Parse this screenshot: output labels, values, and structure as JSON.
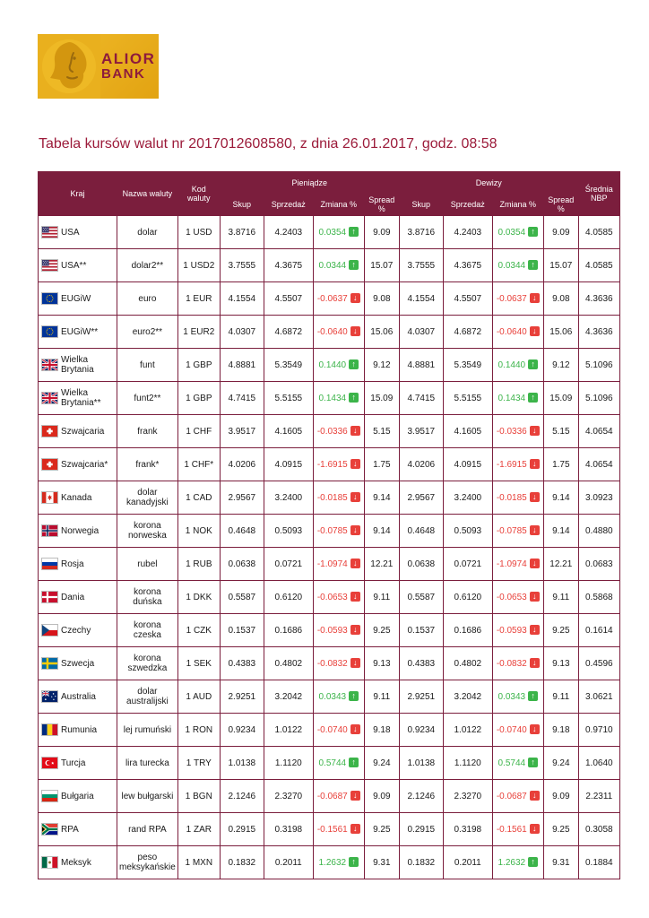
{
  "logo": {
    "brand_line1": "ALIOR",
    "brand_line2": "BANK"
  },
  "title": "Tabela kursów walut nr 2017012608580, z dnia 26.01.2017, godz. 08:58",
  "colors": {
    "maroon": "#7b1e3d",
    "title_red": "#9c1b3a",
    "green": "#3cb44a",
    "red": "#e8403a",
    "gold": "#e9b01e"
  },
  "table": {
    "headers": {
      "kraj": "Kraj",
      "nazwa": "Nazwa waluty",
      "kod": "Kod waluty",
      "pieniadze": "Pieniądze",
      "dewizy": "Dewizy",
      "srednia": "Średnia NBP"
    },
    "subheaders": [
      "Skup",
      "Sprzedaż",
      "Zmiana %",
      "Spread %",
      "Skup",
      "Sprzedaż",
      "Zmiana %",
      "Spread %"
    ],
    "rows": [
      {
        "flag": "us",
        "country": "USA",
        "currency": "dolar",
        "code": "1 USD",
        "pieniadze": {
          "skup": "3.8716",
          "sprzedaz": "4.2403",
          "zmiana": "0.0354",
          "dir": "up",
          "spread": "9.09"
        },
        "dewizy": {
          "skup": "3.8716",
          "sprzedaz": "4.2403",
          "zmiana": "0.0354",
          "dir": "up",
          "spread": "9.09"
        },
        "nbp": "4.0585"
      },
      {
        "flag": "us",
        "country": "USA**",
        "currency": "dolar2**",
        "code": "1 USD2",
        "pieniadze": {
          "skup": "3.7555",
          "sprzedaz": "4.3675",
          "zmiana": "0.0344",
          "dir": "up",
          "spread": "15.07"
        },
        "dewizy": {
          "skup": "3.7555",
          "sprzedaz": "4.3675",
          "zmiana": "0.0344",
          "dir": "up",
          "spread": "15.07"
        },
        "nbp": "4.0585"
      },
      {
        "flag": "eu",
        "country": "EUGiW",
        "currency": "euro",
        "code": "1 EUR",
        "pieniadze": {
          "skup": "4.1554",
          "sprzedaz": "4.5507",
          "zmiana": "-0.0637",
          "dir": "down",
          "spread": "9.08"
        },
        "dewizy": {
          "skup": "4.1554",
          "sprzedaz": "4.5507",
          "zmiana": "-0.0637",
          "dir": "down",
          "spread": "9.08"
        },
        "nbp": "4.3636"
      },
      {
        "flag": "eu",
        "country": "EUGiW**",
        "currency": "euro2**",
        "code": "1 EUR2",
        "pieniadze": {
          "skup": "4.0307",
          "sprzedaz": "4.6872",
          "zmiana": "-0.0640",
          "dir": "down",
          "spread": "15.06"
        },
        "dewizy": {
          "skup": "4.0307",
          "sprzedaz": "4.6872",
          "zmiana": "-0.0640",
          "dir": "down",
          "spread": "15.06"
        },
        "nbp": "4.3636"
      },
      {
        "flag": "gb",
        "country": "Wielka Brytania",
        "currency": "funt",
        "code": "1 GBP",
        "pieniadze": {
          "skup": "4.8881",
          "sprzedaz": "5.3549",
          "zmiana": "0.1440",
          "dir": "up",
          "spread": "9.12"
        },
        "dewizy": {
          "skup": "4.8881",
          "sprzedaz": "5.3549",
          "zmiana": "0.1440",
          "dir": "up",
          "spread": "9.12"
        },
        "nbp": "5.1096"
      },
      {
        "flag": "gb",
        "country": "Wielka Brytania**",
        "currency": "funt2**",
        "code": "1 GBP",
        "pieniadze": {
          "skup": "4.7415",
          "sprzedaz": "5.5155",
          "zmiana": "0.1434",
          "dir": "up",
          "spread": "15.09"
        },
        "dewizy": {
          "skup": "4.7415",
          "sprzedaz": "5.5155",
          "zmiana": "0.1434",
          "dir": "up",
          "spread": "15.09"
        },
        "nbp": "5.1096"
      },
      {
        "flag": "ch",
        "country": "Szwajcaria",
        "currency": "frank",
        "code": "1 CHF",
        "pieniadze": {
          "skup": "3.9517",
          "sprzedaz": "4.1605",
          "zmiana": "-0.0336",
          "dir": "down",
          "spread": "5.15"
        },
        "dewizy": {
          "skup": "3.9517",
          "sprzedaz": "4.1605",
          "zmiana": "-0.0336",
          "dir": "down",
          "spread": "5.15"
        },
        "nbp": "4.0654"
      },
      {
        "flag": "ch",
        "country": "Szwajcaria*",
        "currency": "frank*",
        "code": "1 CHF*",
        "pieniadze": {
          "skup": "4.0206",
          "sprzedaz": "4.0915",
          "zmiana": "-1.6915",
          "dir": "down",
          "spread": "1.75"
        },
        "dewizy": {
          "skup": "4.0206",
          "sprzedaz": "4.0915",
          "zmiana": "-1.6915",
          "dir": "down",
          "spread": "1.75"
        },
        "nbp": "4.0654"
      },
      {
        "flag": "ca",
        "country": "Kanada",
        "currency": "dolar kanadyjski",
        "code": "1 CAD",
        "pieniadze": {
          "skup": "2.9567",
          "sprzedaz": "3.2400",
          "zmiana": "-0.0185",
          "dir": "down",
          "spread": "9.14"
        },
        "dewizy": {
          "skup": "2.9567",
          "sprzedaz": "3.2400",
          "zmiana": "-0.0185",
          "dir": "down",
          "spread": "9.14"
        },
        "nbp": "3.0923"
      },
      {
        "flag": "no",
        "country": "Norwegia",
        "currency": "korona norweska",
        "code": "1 NOK",
        "pieniadze": {
          "skup": "0.4648",
          "sprzedaz": "0.5093",
          "zmiana": "-0.0785",
          "dir": "down",
          "spread": "9.14"
        },
        "dewizy": {
          "skup": "0.4648",
          "sprzedaz": "0.5093",
          "zmiana": "-0.0785",
          "dir": "down",
          "spread": "9.14"
        },
        "nbp": "0.4880"
      },
      {
        "flag": "ru",
        "country": "Rosja",
        "currency": "rubel",
        "code": "1 RUB",
        "pieniadze": {
          "skup": "0.0638",
          "sprzedaz": "0.0721",
          "zmiana": "-1.0974",
          "dir": "down",
          "spread": "12.21"
        },
        "dewizy": {
          "skup": "0.0638",
          "sprzedaz": "0.0721",
          "zmiana": "-1.0974",
          "dir": "down",
          "spread": "12.21"
        },
        "nbp": "0.0683"
      },
      {
        "flag": "dk",
        "country": "Dania",
        "currency": "korona duńska",
        "code": "1 DKK",
        "pieniadze": {
          "skup": "0.5587",
          "sprzedaz": "0.6120",
          "zmiana": "-0.0653",
          "dir": "down",
          "spread": "9.11"
        },
        "dewizy": {
          "skup": "0.5587",
          "sprzedaz": "0.6120",
          "zmiana": "-0.0653",
          "dir": "down",
          "spread": "9.11"
        },
        "nbp": "0.5868"
      },
      {
        "flag": "cz",
        "country": "Czechy",
        "currency": "korona czeska",
        "code": "1 CZK",
        "pieniadze": {
          "skup": "0.1537",
          "sprzedaz": "0.1686",
          "zmiana": "-0.0593",
          "dir": "down",
          "spread": "9.25"
        },
        "dewizy": {
          "skup": "0.1537",
          "sprzedaz": "0.1686",
          "zmiana": "-0.0593",
          "dir": "down",
          "spread": "9.25"
        },
        "nbp": "0.1614"
      },
      {
        "flag": "se",
        "country": "Szwecja",
        "currency": "korona szwedzka",
        "code": "1 SEK",
        "pieniadze": {
          "skup": "0.4383",
          "sprzedaz": "0.4802",
          "zmiana": "-0.0832",
          "dir": "down",
          "spread": "9.13"
        },
        "dewizy": {
          "skup": "0.4383",
          "sprzedaz": "0.4802",
          "zmiana": "-0.0832",
          "dir": "down",
          "spread": "9.13"
        },
        "nbp": "0.4596"
      },
      {
        "flag": "au",
        "country": "Australia",
        "currency": "dolar australijski",
        "code": "1 AUD",
        "pieniadze": {
          "skup": "2.9251",
          "sprzedaz": "3.2042",
          "zmiana": "0.0343",
          "dir": "up",
          "spread": "9.11"
        },
        "dewizy": {
          "skup": "2.9251",
          "sprzedaz": "3.2042",
          "zmiana": "0.0343",
          "dir": "up",
          "spread": "9.11"
        },
        "nbp": "3.0621"
      },
      {
        "flag": "ro",
        "country": "Rumunia",
        "currency": "lej rumuński",
        "code": "1 RON",
        "pieniadze": {
          "skup": "0.9234",
          "sprzedaz": "1.0122",
          "zmiana": "-0.0740",
          "dir": "down",
          "spread": "9.18"
        },
        "dewizy": {
          "skup": "0.9234",
          "sprzedaz": "1.0122",
          "zmiana": "-0.0740",
          "dir": "down",
          "spread": "9.18"
        },
        "nbp": "0.9710"
      },
      {
        "flag": "tr",
        "country": "Turcja",
        "currency": "lira turecka",
        "code": "1 TRY",
        "pieniadze": {
          "skup": "1.0138",
          "sprzedaz": "1.1120",
          "zmiana": "0.5744",
          "dir": "up",
          "spread": "9.24"
        },
        "dewizy": {
          "skup": "1.0138",
          "sprzedaz": "1.1120",
          "zmiana": "0.5744",
          "dir": "up",
          "spread": "9.24"
        },
        "nbp": "1.0640"
      },
      {
        "flag": "bg",
        "country": "Bułgaria",
        "currency": "lew bułgarski",
        "code": "1 BGN",
        "pieniadze": {
          "skup": "2.1246",
          "sprzedaz": "2.3270",
          "zmiana": "-0.0687",
          "dir": "down",
          "spread": "9.09"
        },
        "dewizy": {
          "skup": "2.1246",
          "sprzedaz": "2.3270",
          "zmiana": "-0.0687",
          "dir": "down",
          "spread": "9.09"
        },
        "nbp": "2.2311"
      },
      {
        "flag": "za",
        "country": "RPA",
        "currency": "rand RPA",
        "code": "1 ZAR",
        "pieniadze": {
          "skup": "0.2915",
          "sprzedaz": "0.3198",
          "zmiana": "-0.1561",
          "dir": "down",
          "spread": "9.25"
        },
        "dewizy": {
          "skup": "0.2915",
          "sprzedaz": "0.3198",
          "zmiana": "-0.1561",
          "dir": "down",
          "spread": "9.25"
        },
        "nbp": "0.3058"
      },
      {
        "flag": "mx",
        "country": "Meksyk",
        "currency": "peso meksykańskie",
        "code": "1 MXN",
        "pieniadze": {
          "skup": "0.1832",
          "sprzedaz": "0.2011",
          "zmiana": "1.2632",
          "dir": "up",
          "spread": "9.31"
        },
        "dewizy": {
          "skup": "0.1832",
          "sprzedaz": "0.2011",
          "zmiana": "1.2632",
          "dir": "up",
          "spread": "9.31"
        },
        "nbp": "0.1884"
      }
    ]
  }
}
